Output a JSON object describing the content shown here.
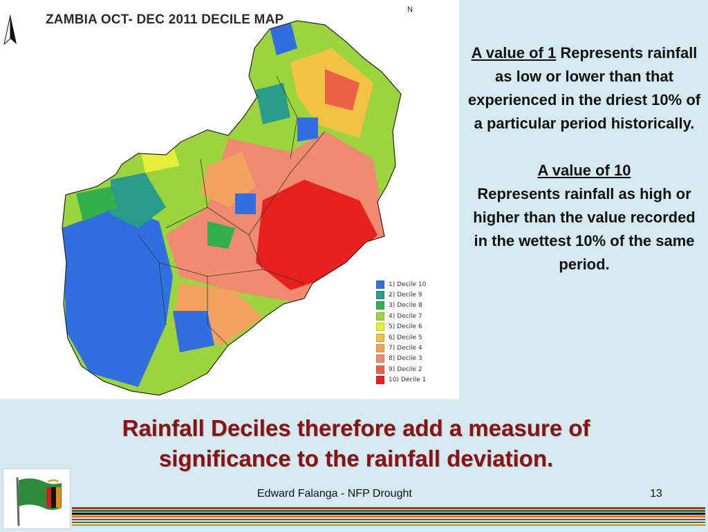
{
  "map": {
    "title": "ZAMBIA OCT- DEC 2011 DECILE MAP",
    "north_label": "N",
    "legend": [
      {
        "label": "1) Decile 10",
        "color": "#2f6fe0"
      },
      {
        "label": "2) Decile 9",
        "color": "#2a9c8a"
      },
      {
        "label": "3) Decile 8",
        "color": "#34b04a"
      },
      {
        "label": "4) Decile 7",
        "color": "#9bd43c"
      },
      {
        "label": "5) Decile 6",
        "color": "#e6ee3a"
      },
      {
        "label": "6) Decile 5",
        "color": "#f3c244"
      },
      {
        "label": "7) Decile 4",
        "color": "#f2a35e"
      },
      {
        "label": "8) Decile 3",
        "color": "#f08a70"
      },
      {
        "label": "9) Decile 2",
        "color": "#ec6048"
      },
      {
        "label": "10) Decile 1",
        "color": "#e8201e"
      }
    ]
  },
  "explanation": {
    "p1_head": "A value of 1",
    "p1_body": " Represents rainfall as low or lower than that experienced in the driest 10% of a particular period historically.",
    "p2_head": "A value of 10",
    "p2_body": "Represents rainfall as high or higher than the value recorded in the wettest 10% of the same period."
  },
  "headline": {
    "line1": "Rainfall Deciles therefore add a measure of",
    "line2": "significance to the rainfall deviation."
  },
  "footer": {
    "author": "Edward Falanga - NFP Drought",
    "page": "13"
  },
  "colors": {
    "background": "#d5eaf0",
    "headline": "#8a1212",
    "stripe_red": "#c0272d",
    "stripe_green": "#2e7d32",
    "stripe_orange": "#e07b1a",
    "stripe_black": "#000000"
  }
}
